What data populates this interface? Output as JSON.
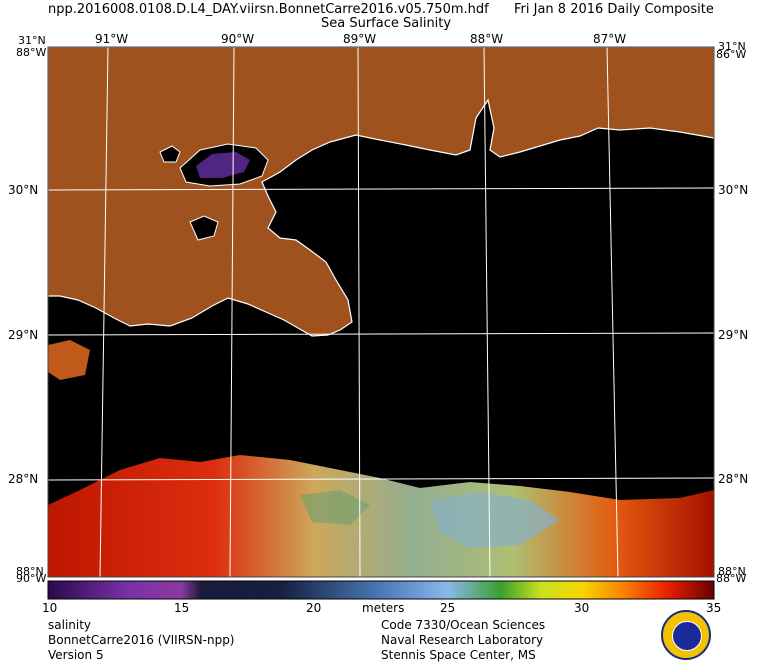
{
  "header": {
    "filename": "npp.2016008.0108.D.L4_DAY.viirsn.BonnetCarre2016.v05.750m.hdf",
    "date": "Fri Jan  8 2016 Daily Composite",
    "product": "Sea Surface Salinity"
  },
  "axes": {
    "top_lon_labels": [
      "91°W",
      "90°W",
      "89°W",
      "88°W",
      "87°W"
    ],
    "corner_top_left_lat": "31°N",
    "corner_top_left_lon": "88°W",
    "corner_top_right_lat": "31°N",
    "corner_top_right_lon": "86°W",
    "corner_bottom_left_lat": "88°N",
    "corner_bottom_left_lon": "90°W",
    "corner_bottom_right_lat": "88°N",
    "corner_bottom_right_lon": "88°W",
    "lat_labels": [
      "30°N",
      "29°N",
      "28°N"
    ]
  },
  "colorbar": {
    "ticks": [
      "10",
      "15",
      "20",
      "25",
      "30",
      "35"
    ],
    "unit": "meters",
    "colors": [
      "#3a0a5a",
      "#6a2aa0",
      "#9a3ab0",
      "#1a1a40",
      "#16163a",
      "#2a4a8a",
      "#5a86c8",
      "#88b8f0",
      "#6ac050",
      "#c8e020",
      "#f8d800",
      "#f89000",
      "#f03000",
      "#b80000",
      "#6a0000"
    ]
  },
  "footer": {
    "left_line1": "salinity",
    "left_line2": "BonnetCarre2016 (VIIRSN-npp)",
    "left_line3": "Version 5",
    "right_line1": "Code 7330/Ocean Sciences",
    "right_line2": "Naval Research Laboratory",
    "right_line3": "Stennis Space Center, MS"
  },
  "map_colors": {
    "land": "#a0521e",
    "water": "#000000",
    "coast": "#ffffff",
    "grid": "#ffffff"
  }
}
